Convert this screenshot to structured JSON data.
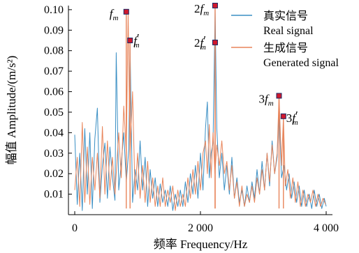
{
  "chart_data": {
    "type": "line",
    "xlabel": "频率 Frequency/Hz",
    "ylabel": "幅值 Amplitude/(m/s²)",
    "xlim": [
      -100,
      4100
    ],
    "ylim": [
      0,
      0.102
    ],
    "x_ticks": [
      {
        "value": 0,
        "label": "0"
      },
      {
        "value": 2000,
        "label": "2 000"
      },
      {
        "value": 4000,
        "label": "4 000"
      }
    ],
    "y_ticks": [
      {
        "value": 0.01,
        "label": "0.01"
      },
      {
        "value": 0.02,
        "label": "0.02"
      },
      {
        "value": 0.03,
        "label": "0.03"
      },
      {
        "value": 0.04,
        "label": "0.04"
      },
      {
        "value": 0.05,
        "label": "0.05"
      },
      {
        "value": 0.06,
        "label": "0.06"
      },
      {
        "value": 0.07,
        "label": "0.07"
      },
      {
        "value": 0.08,
        "label": "0.08"
      },
      {
        "value": 0.09,
        "label": "0.09"
      },
      {
        "value": 0.1,
        "label": "0.10"
      }
    ],
    "grid": false,
    "legend_position": "top-right",
    "series": [
      {
        "name": "真实信号\nReal signal",
        "color": "#3a8fc4",
        "points": [
          [
            0,
            0.039
          ],
          [
            40,
            0.005
          ],
          [
            80,
            0.03
          ],
          [
            120,
            0.002
          ],
          [
            160,
            0.042
          ],
          [
            200,
            0.01
          ],
          [
            240,
            0.04
          ],
          [
            280,
            0.003
          ],
          [
            320,
            0.037
          ],
          [
            360,
            0.052
          ],
          [
            400,
            0.006
          ],
          [
            440,
            0.024
          ],
          [
            480,
            0.035
          ],
          [
            520,
            0.008
          ],
          [
            560,
            0.033
          ],
          [
            600,
            0.018
          ],
          [
            640,
            0.007
          ],
          [
            660,
            0.079
          ],
          [
            700,
            0.012
          ],
          [
            740,
            0.025
          ],
          [
            780,
            0.04
          ],
          [
            820,
            0.016
          ],
          [
            860,
            0.032
          ],
          [
            880,
            0.082
          ],
          [
            920,
            0.006
          ],
          [
            960,
            0.022
          ],
          [
            1000,
            0.012
          ],
          [
            1040,
            0.036
          ],
          [
            1080,
            0.012
          ],
          [
            1120,
            0.028
          ],
          [
            1160,
            0.004
          ],
          [
            1200,
            0.022
          ],
          [
            1240,
            0.008
          ],
          [
            1280,
            0.018
          ],
          [
            1320,
            0.004
          ],
          [
            1360,
            0.015
          ],
          [
            1400,
            0.006
          ],
          [
            1440,
            0.012
          ],
          [
            1480,
            0.004
          ],
          [
            1520,
            0.014
          ],
          [
            1560,
            0.002
          ],
          [
            1600,
            0.01
          ],
          [
            1640,
            0.004
          ],
          [
            1680,
            0.012
          ],
          [
            1720,
            0.004
          ],
          [
            1760,
            0.016
          ],
          [
            1800,
            0.006
          ],
          [
            1840,
            0.02
          ],
          [
            1880,
            0.01
          ],
          [
            1920,
            0.024
          ],
          [
            1960,
            0.008
          ],
          [
            2000,
            0.03
          ],
          [
            2040,
            0.012
          ],
          [
            2080,
            0.042
          ],
          [
            2110,
            0.055
          ],
          [
            2140,
            0.018
          ],
          [
            2170,
            0.03
          ],
          [
            2200,
            0.035
          ],
          [
            2233,
            0.1
          ],
          [
            2260,
            0.042
          ],
          [
            2300,
            0.018
          ],
          [
            2340,
            0.03
          ],
          [
            2380,
            0.012
          ],
          [
            2420,
            0.024
          ],
          [
            2460,
            0.01
          ],
          [
            2500,
            0.028
          ],
          [
            2540,
            0.008
          ],
          [
            2580,
            0.018
          ],
          [
            2620,
            0.006
          ],
          [
            2660,
            0.012
          ],
          [
            2700,
            0.004
          ],
          [
            2740,
            0.014
          ],
          [
            2780,
            0.006
          ],
          [
            2820,
            0.016
          ],
          [
            2860,
            0.008
          ],
          [
            2900,
            0.022
          ],
          [
            2940,
            0.01
          ],
          [
            2980,
            0.026
          ],
          [
            3020,
            0.012
          ],
          [
            3060,
            0.03
          ],
          [
            3100,
            0.014
          ],
          [
            3140,
            0.036
          ],
          [
            3180,
            0.02
          ],
          [
            3220,
            0.028
          ],
          [
            3250,
            0.052
          ],
          [
            3290,
            0.018
          ],
          [
            3330,
            0.024
          ],
          [
            3370,
            0.012
          ],
          [
            3410,
            0.02
          ],
          [
            3450,
            0.008
          ],
          [
            3490,
            0.016
          ],
          [
            3530,
            0.006
          ],
          [
            3570,
            0.014
          ],
          [
            3610,
            0.004
          ],
          [
            3650,
            0.012
          ],
          [
            3690,
            0.004
          ],
          [
            3730,
            0.01
          ],
          [
            3770,
            0.003
          ],
          [
            3810,
            0.012
          ],
          [
            3850,
            0.004
          ],
          [
            3890,
            0.01
          ],
          [
            3930,
            0.003
          ],
          [
            3970,
            0.008
          ],
          [
            4000,
            0.004
          ]
        ]
      },
      {
        "name": "生成信号\nGenerated signal",
        "color": "#e8845a",
        "points": [
          [
            0,
            0.012
          ],
          [
            40,
            0.028
          ],
          [
            80,
            0.004
          ],
          [
            120,
            0.045
          ],
          [
            160,
            0.006
          ],
          [
            200,
            0.033
          ],
          [
            240,
            0.005
          ],
          [
            280,
            0.028
          ],
          [
            320,
            0.012
          ],
          [
            360,
            0.03
          ],
          [
            400,
            0.008
          ],
          [
            440,
            0.043
          ],
          [
            480,
            0.01
          ],
          [
            520,
            0.036
          ],
          [
            560,
            0.012
          ],
          [
            600,
            0.028
          ],
          [
            640,
            0.01
          ],
          [
            700,
            0.04
          ],
          [
            740,
            0.018
          ],
          [
            780,
            0.053
          ],
          [
            820,
            0.03
          ],
          [
            850,
            0.099
          ],
          [
            880,
            0.028
          ],
          [
            920,
            0.06
          ],
          [
            960,
            0.01
          ],
          [
            1000,
            0.03
          ],
          [
            1040,
            0.008
          ],
          [
            1080,
            0.024
          ],
          [
            1120,
            0.006
          ],
          [
            1160,
            0.026
          ],
          [
            1200,
            0.006
          ],
          [
            1240,
            0.018
          ],
          [
            1280,
            0.004
          ],
          [
            1320,
            0.014
          ],
          [
            1360,
            0.004
          ],
          [
            1400,
            0.018
          ],
          [
            1440,
            0.004
          ],
          [
            1480,
            0.012
          ],
          [
            1520,
            0.006
          ],
          [
            1560,
            0.014
          ],
          [
            1600,
            0.002
          ],
          [
            1640,
            0.012
          ],
          [
            1680,
            0.004
          ],
          [
            1720,
            0.01
          ],
          [
            1760,
            0.004
          ],
          [
            1800,
            0.018
          ],
          [
            1840,
            0.008
          ],
          [
            1880,
            0.022
          ],
          [
            1920,
            0.01
          ],
          [
            1960,
            0.026
          ],
          [
            2000,
            0.012
          ],
          [
            2040,
            0.03
          ],
          [
            2080,
            0.036
          ],
          [
            2110,
            0.02
          ],
          [
            2140,
            0.044
          ],
          [
            2170,
            0.018
          ],
          [
            2200,
            0.04
          ],
          [
            2230,
            0.02
          ],
          [
            2260,
            0.034
          ],
          [
            2300,
            0.024
          ],
          [
            2340,
            0.036
          ],
          [
            2380,
            0.02
          ],
          [
            2420,
            0.026
          ],
          [
            2460,
            0.012
          ],
          [
            2500,
            0.024
          ],
          [
            2540,
            0.008
          ],
          [
            2580,
            0.016
          ],
          [
            2620,
            0.004
          ],
          [
            2660,
            0.014
          ],
          [
            2700,
            0.004
          ],
          [
            2740,
            0.01
          ],
          [
            2780,
            0.006
          ],
          [
            2820,
            0.014
          ],
          [
            2860,
            0.006
          ],
          [
            2900,
            0.018
          ],
          [
            2940,
            0.01
          ],
          [
            2980,
            0.022
          ],
          [
            3020,
            0.012
          ],
          [
            3060,
            0.03
          ],
          [
            3100,
            0.016
          ],
          [
            3140,
            0.034
          ],
          [
            3180,
            0.02
          ],
          [
            3220,
            0.03
          ],
          [
            3250,
            0.058
          ],
          [
            3290,
            0.024
          ],
          [
            3320,
            0.048
          ],
          [
            3350,
            0.014
          ],
          [
            3390,
            0.022
          ],
          [
            3430,
            0.008
          ],
          [
            3470,
            0.018
          ],
          [
            3510,
            0.006
          ],
          [
            3550,
            0.016
          ],
          [
            3590,
            0.004
          ],
          [
            3630,
            0.012
          ],
          [
            3670,
            0.004
          ],
          [
            3710,
            0.01
          ],
          [
            3750,
            0.006
          ],
          [
            3790,
            0.012
          ],
          [
            3830,
            0.004
          ],
          [
            3870,
            0.01
          ],
          [
            3910,
            0.004
          ],
          [
            3950,
            0.008
          ],
          [
            3990,
            0.005
          ]
        ]
      }
    ],
    "markers": [
      {
        "x": 820,
        "y": 0.099,
        "base": "f",
        "sub": "m",
        "prime": false,
        "coef": ""
      },
      {
        "x": 880,
        "y": 0.085,
        "base": "f",
        "sub": "m",
        "prime": true,
        "coef": ""
      },
      {
        "x": 2233,
        "y": 0.102,
        "base": "f",
        "sub": "m",
        "prime": false,
        "coef": "2"
      },
      {
        "x": 2233,
        "y": 0.084,
        "base": "f",
        "sub": "m",
        "prime": true,
        "coef": "2"
      },
      {
        "x": 3250,
        "y": 0.058,
        "base": "f",
        "sub": "m",
        "prime": false,
        "coef": "3"
      },
      {
        "x": 3320,
        "y": 0.048,
        "base": "f",
        "sub": "m",
        "prime": true,
        "coef": "3"
      }
    ],
    "marker_color": "#d0182c",
    "marker_edge": "#1a2a66"
  }
}
